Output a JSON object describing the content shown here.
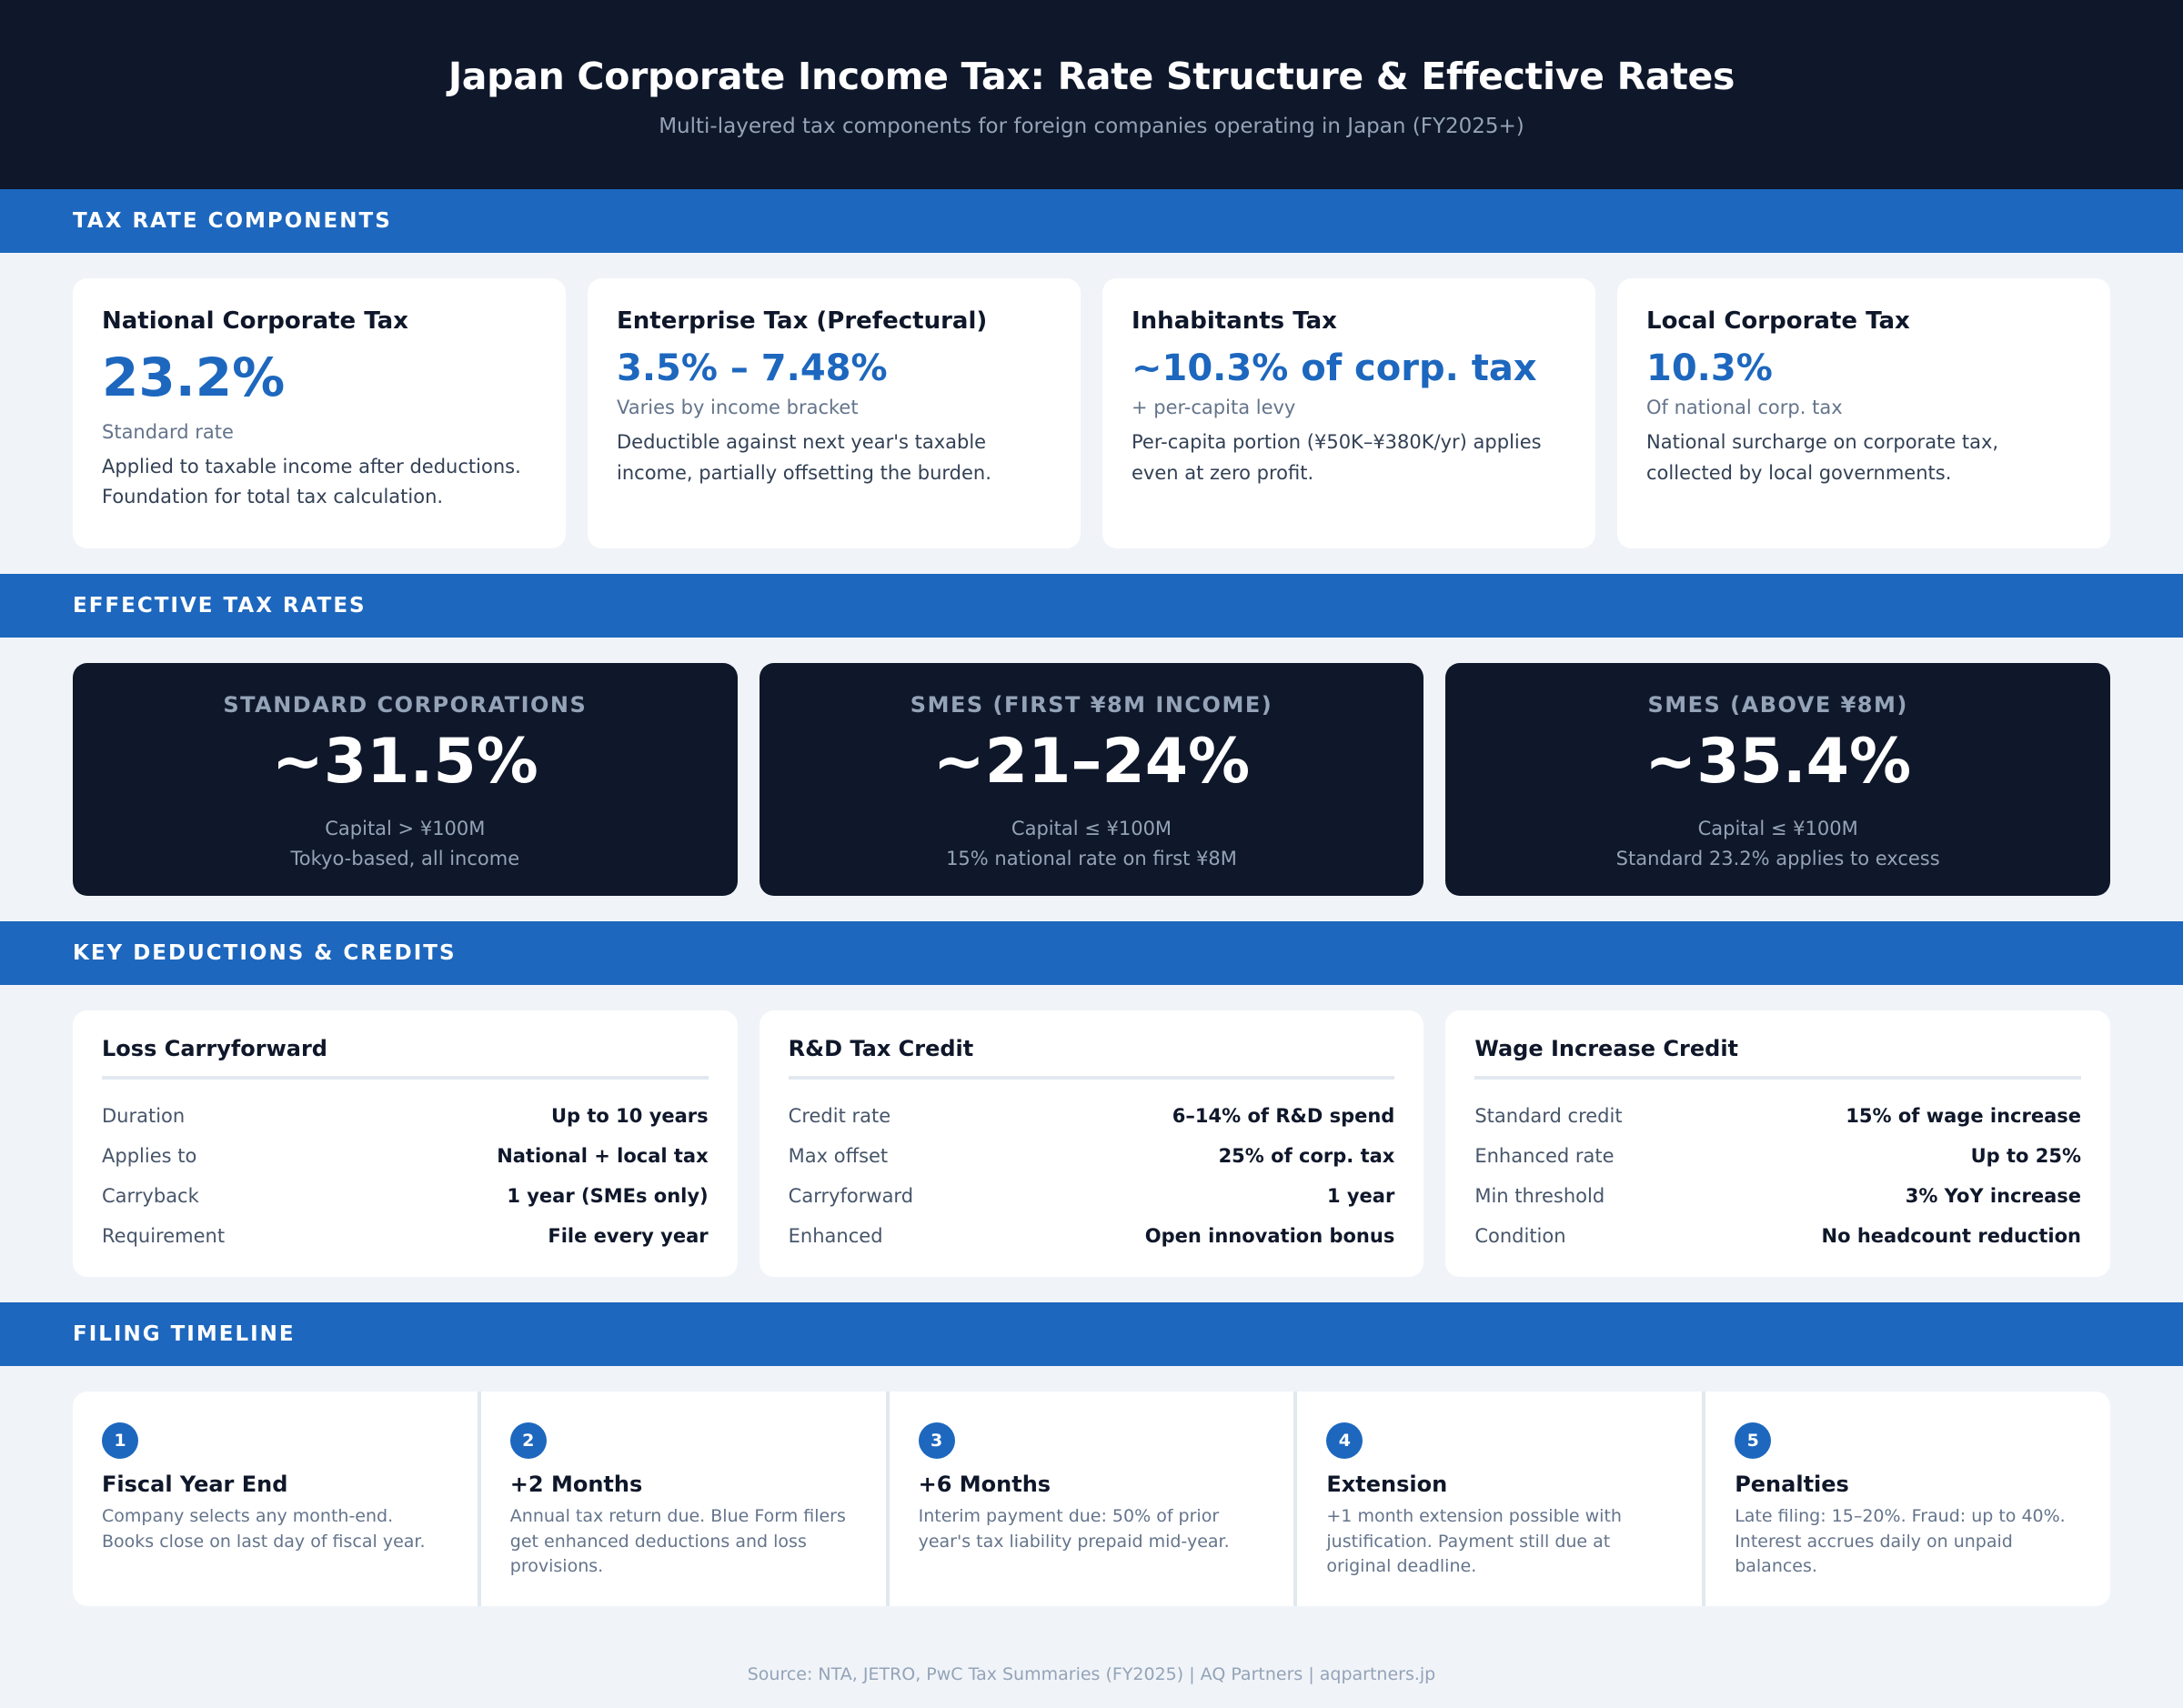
{
  "header": {
    "title": "Japan Corporate Income Tax: Rate Structure & Effective Rates",
    "subtitle": "Multi-layered tax components for foreign companies operating in Japan (FY2025+)"
  },
  "colors": {
    "header_bg": "#0f172a",
    "accent": "#1d67be",
    "page_bg": "#f0f4f8",
    "card_bg": "#ffffff",
    "muted": "#94a3b8"
  },
  "sections": {
    "components": "TAX RATE COMPONENTS",
    "effective": "EFFECTIVE TAX RATES",
    "deductions": "KEY DEDUCTIONS & CREDITS",
    "timeline": "FILING TIMELINE"
  },
  "components": [
    {
      "title": "National Corporate Tax",
      "rate": "23.2%",
      "note": "Standard rate",
      "desc": "Applied to taxable income after deductions. Foundation for total tax calculation."
    },
    {
      "title": "Enterprise Tax (Prefectural)",
      "rate": "3.5% – 7.48%",
      "note": "Varies by income bracket",
      "desc": "Deductible against next year's taxable income, partially offsetting the burden."
    },
    {
      "title": "Inhabitants Tax",
      "rate": "~10.3% of corp. tax",
      "note": "+ per-capita levy",
      "desc": "Per-capita portion (¥50K–¥380K/yr) applies even at zero profit."
    },
    {
      "title": "Local Corporate Tax",
      "rate": "10.3%",
      "note": "Of national corp. tax",
      "desc": "National surcharge on corporate tax, collected by local governments."
    }
  ],
  "effective": [
    {
      "label": "STANDARD CORPORATIONS",
      "value": "~31.5%",
      "line1": "Capital > ¥100M",
      "line2": "Tokyo-based, all income"
    },
    {
      "label": "SMES (FIRST ¥8M INCOME)",
      "value": "~21–24%",
      "line1": "Capital ≤ ¥100M",
      "line2": "15% national rate on first ¥8M"
    },
    {
      "label": "SMES (ABOVE ¥8M)",
      "value": "~35.4%",
      "line1": "Capital ≤ ¥100M",
      "line2": "Standard 23.2% applies to excess"
    }
  ],
  "deductions": [
    {
      "title": "Loss Carryforward",
      "rows": [
        {
          "k": "Duration",
          "v": "Up to 10 years"
        },
        {
          "k": "Applies to",
          "v": "National + local tax"
        },
        {
          "k": "Carryback",
          "v": "1 year (SMEs only)"
        },
        {
          "k": "Requirement",
          "v": "File every year"
        }
      ]
    },
    {
      "title": "R&D Tax Credit",
      "rows": [
        {
          "k": "Credit rate",
          "v": "6–14% of R&D spend"
        },
        {
          "k": "Max offset",
          "v": "25% of corp. tax"
        },
        {
          "k": "Carryforward",
          "v": "1 year"
        },
        {
          "k": "Enhanced",
          "v": "Open innovation bonus"
        }
      ]
    },
    {
      "title": "Wage Increase Credit",
      "rows": [
        {
          "k": "Standard credit",
          "v": "15% of wage increase"
        },
        {
          "k": "Enhanced rate",
          "v": "Up to 25%"
        },
        {
          "k": "Min threshold",
          "v": "3% YoY increase"
        },
        {
          "k": "Condition",
          "v": "No headcount reduction"
        }
      ]
    }
  ],
  "timeline": [
    {
      "num": "1",
      "title": "Fiscal Year End",
      "desc": "Company selects any month-end. Books close on last day of fiscal year."
    },
    {
      "num": "2",
      "title": "+2 Months",
      "desc": "Annual tax return due. Blue Form filers get enhanced deductions and loss provisions."
    },
    {
      "num": "3",
      "title": "+6 Months",
      "desc": "Interim payment due: 50% of prior year's tax liability prepaid mid-year."
    },
    {
      "num": "4",
      "title": "Extension",
      "desc": "+1 month extension possible with justification. Payment still due at original deadline."
    },
    {
      "num": "5",
      "title": "Penalties",
      "desc": "Late filing: 15–20%. Fraud: up to 40%. Interest accrues daily on unpaid balances."
    }
  ],
  "footer": {
    "source": "Source: NTA, JETRO, PwC Tax Summaries (FY2025) | AQ Partners | aqpartners.jp"
  }
}
